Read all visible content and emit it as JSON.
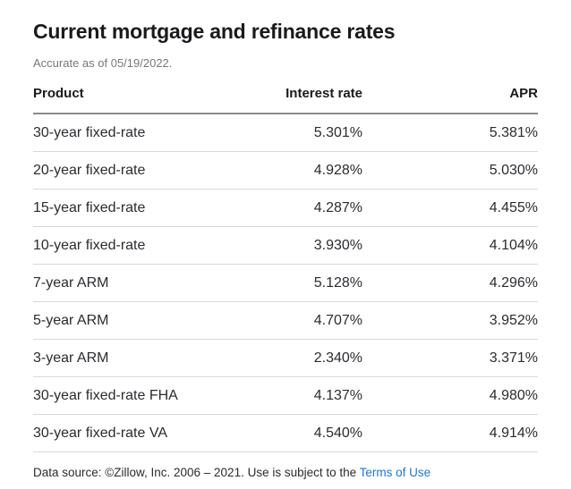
{
  "page": {
    "title": "Current mortgage and refinance rates",
    "subtitle": "Accurate as of 05/19/2022."
  },
  "table": {
    "columns": [
      "Product",
      "Interest rate",
      "APR"
    ],
    "rows": [
      {
        "product": "30-year fixed-rate",
        "interest_rate": "5.301%",
        "apr": "5.381%"
      },
      {
        "product": "20-year fixed-rate",
        "interest_rate": "4.928%",
        "apr": "5.030%"
      },
      {
        "product": "15-year fixed-rate",
        "interest_rate": "4.287%",
        "apr": "4.455%"
      },
      {
        "product": "10-year fixed-rate",
        "interest_rate": "3.930%",
        "apr": "4.104%"
      },
      {
        "product": "7-year ARM",
        "interest_rate": "5.128%",
        "apr": "4.296%"
      },
      {
        "product": "5-year ARM",
        "interest_rate": "4.707%",
        "apr": "3.952%"
      },
      {
        "product": "3-year ARM",
        "interest_rate": "2.340%",
        "apr": "3.371%"
      },
      {
        "product": "30-year fixed-rate FHA",
        "interest_rate": "4.137%",
        "apr": "4.980%"
      },
      {
        "product": "30-year fixed-rate VA",
        "interest_rate": "4.540%",
        "apr": "4.914%"
      }
    ]
  },
  "footer": {
    "text": "Data source: ©Zillow, Inc. 2006 – 2021. Use is subject to the ",
    "link_label": "Terms of Use"
  },
  "colors": {
    "link": "#1f74d8",
    "text": "#2b2b31",
    "title": "#1a1a1e",
    "muted": "#75787b",
    "header_divider": "#8b8b8b",
    "row_divider": "#d8d8d8"
  }
}
